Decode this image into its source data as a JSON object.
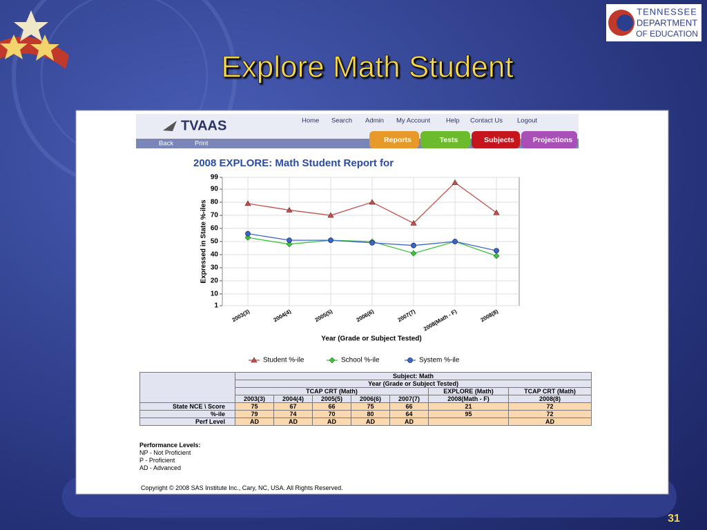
{
  "slide": {
    "title": "Explore Math Student",
    "page_number": "31",
    "logo": [
      "TENNESSEE",
      "DEPARTMENT",
      "OF EDUCATION"
    ]
  },
  "app": {
    "brand": "TVAAS",
    "nav": [
      "Home",
      "Search",
      "Admin",
      "My Account",
      "Help",
      "Contact Us",
      "Logout"
    ],
    "subnav": [
      "Back",
      "Print"
    ],
    "tabs": [
      "Reports",
      "Tests",
      "Subjects",
      "Projections"
    ]
  },
  "chart_data": {
    "type": "line",
    "title": "2008 EXPLORE: Math Student Report for",
    "xlabel": "Year (Grade or Subject Tested)",
    "ylabel": "Expressed in State %-iles",
    "categories": [
      "2003(3)",
      "2004(4)",
      "2005(5)",
      "2006(6)",
      "2007(7)",
      "2008(Math - F)",
      "2008(8)"
    ],
    "series": [
      {
        "name": "Student %-ile",
        "color": "#c0504d",
        "marker": "triangle",
        "values": [
          79,
          74,
          70,
          80,
          64,
          95,
          72
        ]
      },
      {
        "name": "School %-ile",
        "color": "#3cc43c",
        "marker": "diamond",
        "values": [
          53,
          48,
          51,
          50,
          41,
          50,
          39
        ]
      },
      {
        "name": "System %-ile",
        "color": "#3a66c8",
        "marker": "circle",
        "values": [
          56,
          51,
          51,
          49,
          47,
          50,
          43
        ]
      }
    ],
    "ylim": [
      1,
      99
    ],
    "yticks": [
      1,
      10,
      20,
      30,
      40,
      50,
      60,
      70,
      80,
      90,
      99
    ],
    "grid": true
  },
  "table": {
    "subject": "Subject: Math",
    "group": "Year (Grade or Subject Tested)",
    "tests": [
      "TCAP CRT (Math)",
      "EXPLORE (Math)",
      "TCAP CRT (Math)"
    ],
    "columns": [
      "2003(3)",
      "2004(4)",
      "2005(5)",
      "2006(6)",
      "2007(7)",
      "2008(Math - F)",
      "2008(8)"
    ],
    "rows": [
      {
        "label": "State NCE \\ Score",
        "cells": [
          75,
          67,
          66,
          75,
          66,
          21,
          72
        ]
      },
      {
        "label": "%-ile",
        "cells": [
          79,
          74,
          70,
          80,
          64,
          95,
          72
        ]
      },
      {
        "label": "Perf Level",
        "cells": [
          "AD",
          "AD",
          "AD",
          "AD",
          "AD",
          null,
          "AD"
        ]
      }
    ]
  },
  "footnote": {
    "heading": "Performance Levels:",
    "lines": [
      "NP - Not Proficient",
      "P - Proficient",
      "AD - Advanced"
    ]
  },
  "copyright": "Copyright © 2008 SAS Institute Inc., Cary, NC, USA. All Rights Reserved."
}
